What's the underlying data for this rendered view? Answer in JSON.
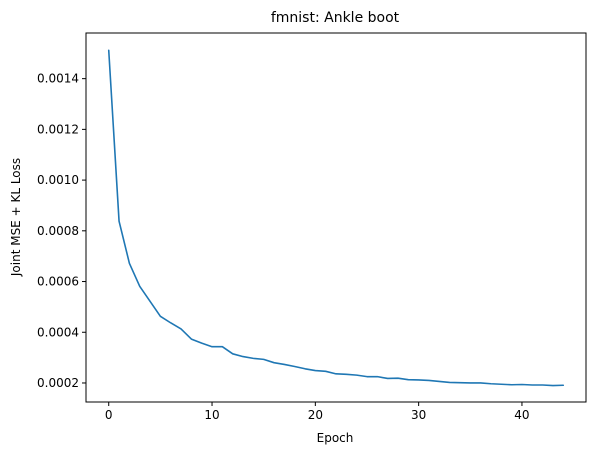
{
  "chart_data": {
    "type": "line",
    "title": "fmnist: Ankle boot",
    "xlabel": "Epoch",
    "ylabel": "Joint MSE + KL Loss",
    "xlim": [
      -2.2,
      46.2
    ],
    "ylim": [
      0.000125,
      0.00158
    ],
    "xticks": [
      0,
      10,
      20,
      30,
      40
    ],
    "yticks": [
      0.0002,
      0.0004,
      0.0006,
      0.0008,
      0.001,
      0.0012,
      0.0014
    ],
    "xtick_labels": [
      "0",
      "10",
      "20",
      "30",
      "40"
    ],
    "ytick_labels": [
      "0.0002",
      "0.0004",
      "0.0006",
      "0.0008",
      "0.0010",
      "0.0012",
      "0.0014"
    ],
    "grid": false,
    "series": [
      {
        "color": "#1f77b4",
        "x": [
          0,
          1,
          2,
          3,
          4,
          5,
          6,
          7,
          8,
          9,
          10,
          11,
          12,
          13,
          14,
          15,
          16,
          17,
          18,
          19,
          20,
          21,
          22,
          23,
          24,
          25,
          26,
          27,
          28,
          29,
          30,
          31,
          32,
          33,
          34,
          35,
          36,
          37,
          38,
          39,
          40,
          41,
          42,
          43,
          44
        ],
        "values": [
          0.001512,
          0.000838,
          0.000672,
          0.000581,
          0.000522,
          0.000463,
          0.000437,
          0.000413,
          0.000373,
          0.000357,
          0.000343,
          0.000343,
          0.000315,
          0.000304,
          0.000297,
          0.000293,
          0.00028,
          0.000273,
          0.000265,
          0.000256,
          0.000249,
          0.000246,
          0.000236,
          0.000234,
          0.000231,
          0.000225,
          0.000225,
          0.000218,
          0.000219,
          0.000213,
          0.000212,
          0.00021,
          0.000206,
          0.000202,
          0.000201,
          0.0002,
          0.0002,
          0.000197,
          0.000195,
          0.000193,
          0.000194,
          0.000192,
          0.000192,
          0.00019,
          0.000191
        ]
      }
    ]
  }
}
